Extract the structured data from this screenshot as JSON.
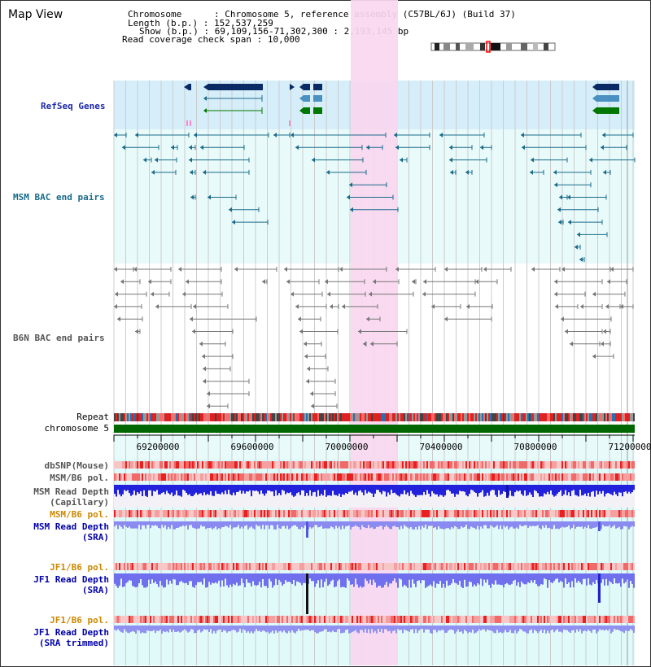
{
  "title": "Map View",
  "info": {
    "chromosome_key": "Chromosome",
    "chromosome_val": "Chromosome 5, reference assembly (C57BL/6J) (Build 37)",
    "length_key": "Length (b.p.)",
    "length_val": "152,537,259",
    "show_key": "Show (b.p.)",
    "show_val": "69,109,156-71,302,300 : 2,193,145 bp",
    "coverage_key": "Read coverage check span",
    "coverage_val": "10,000"
  },
  "tracks": {
    "refseq": "RefSeq Genes",
    "msm_bac": "MSM BAC end pairs",
    "b6n_bac": "B6N BAC end pairs",
    "repeat": "Repeat",
    "chromosome": "chromosome 5",
    "dbsnp": "dbSNP(Mouse)",
    "msm_b6_pol_1": "MSM/B6 pol.",
    "msm_read_depth_cap_1": "MSM Read Depth",
    "msm_read_depth_cap_2": "(Capillary)",
    "msm_b6_pol_2": "MSM/B6 pol.",
    "msm_read_depth_sra_1": "MSM Read Depth",
    "msm_read_depth_sra_2": "(SRA)",
    "jf1_b6_pol_1": "JF1/B6 pol.",
    "jf1_read_depth_sra_1": "JF1 Read Depth",
    "jf1_read_depth_sra_2": "(SRA)",
    "jf1_b6_pol_2": "JF1/B6 pol.",
    "jf1_read_depth_trim_1": "JF1 Read Depth",
    "jf1_read_depth_trim_2": "(SRA trimmed)"
  },
  "axis_ticks": [
    "69200000",
    "69600000",
    "70000000",
    "70400000",
    "70800000",
    "71200000"
  ],
  "colors": {
    "highlight": "#f9d7f0",
    "refseq_bg": "#d6eefa",
    "bac_bg": "#e8fafa",
    "navy": "#0a2a66",
    "teal": "#1a6b8a",
    "gene_green": "#007700",
    "gene_light": "#4a90c0",
    "chromosome_green": "#006600",
    "depth_blue": "#3333ee",
    "depth_light": "#8a8af0",
    "orange_label": "#cc8800",
    "blue_label": "#0000aa"
  }
}
